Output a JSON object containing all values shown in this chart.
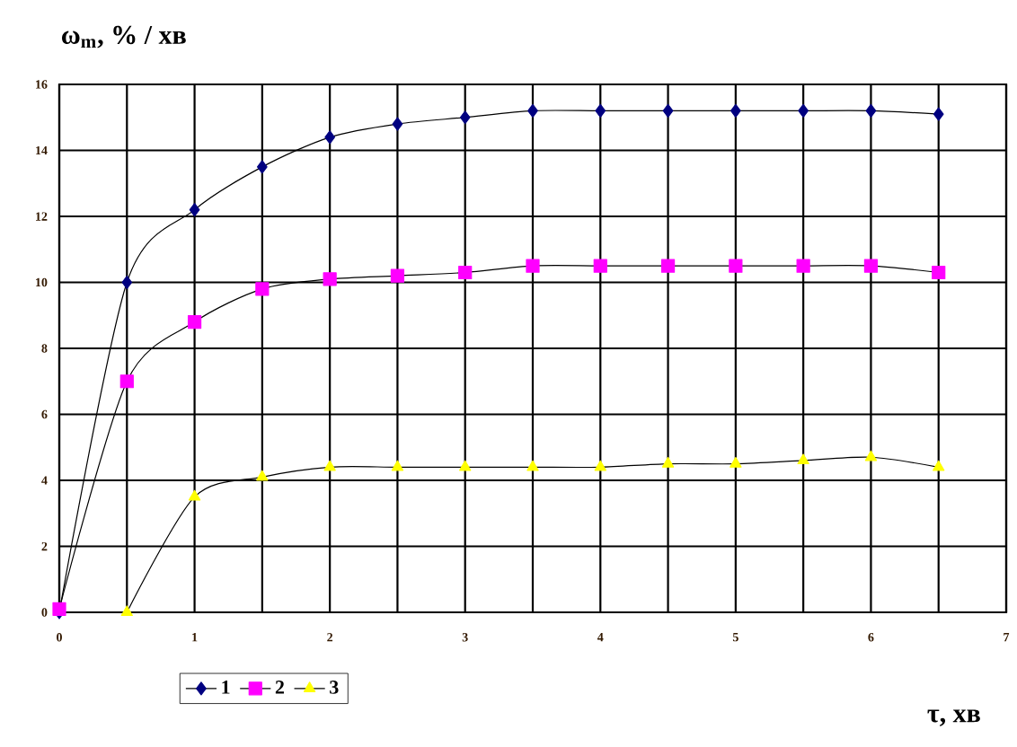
{
  "chart_data": {
    "type": "line",
    "xlabel": "τ, хв",
    "ylabel": "ω$_{m}$, % / хв",
    "x": [
      0,
      0.5,
      1,
      1.5,
      2,
      2.5,
      3,
      3.5,
      4,
      4.5,
      5,
      5.5,
      6,
      6.5
    ],
    "series": [
      {
        "name": "1",
        "color": "#000080",
        "marker": "diamond",
        "values": [
          0,
          10,
          12.2,
          13.5,
          14.4,
          14.8,
          15.0,
          15.2,
          15.2,
          15.2,
          15.2,
          15.2,
          15.2,
          15.1
        ]
      },
      {
        "name": "2",
        "color": "#ff00ff",
        "marker": "square",
        "values": [
          0.1,
          7.0,
          8.8,
          9.8,
          10.1,
          10.2,
          10.3,
          10.5,
          10.5,
          10.5,
          10.5,
          10.5,
          10.5,
          10.3
        ]
      },
      {
        "name": "3",
        "color": "#ffff00",
        "marker": "triangle",
        "x": [
          0.5,
          1,
          1.5,
          2,
          2.5,
          3,
          3.5,
          4,
          4.5,
          5,
          5.5,
          6,
          6.5
        ],
        "values": [
          0,
          3.5,
          4.1,
          4.4,
          4.4,
          4.4,
          4.4,
          4.4,
          4.5,
          4.5,
          4.6,
          4.7,
          4.4
        ]
      }
    ],
    "xlim": [
      0,
      7
    ],
    "ylim": [
      0,
      16
    ],
    "xticks": [
      0,
      {
        "value": 0.5,
        "label": null
      },
      1,
      {
        "value": 1.5,
        "label": null
      },
      2,
      {
        "value": 2.5,
        "label": null
      },
      3,
      {
        "value": 3.5,
        "label": null
      },
      4,
      {
        "value": 4.5,
        "label": null
      },
      5,
      {
        "value": 5.5,
        "label": null
      },
      6,
      {
        "value": 6.5,
        "label": null
      },
      7
    ],
    "yticks": [
      0,
      2,
      4,
      6,
      8,
      10,
      12,
      14,
      16
    ],
    "grid": true,
    "legend": "bottom left",
    "line_style": "solid"
  }
}
